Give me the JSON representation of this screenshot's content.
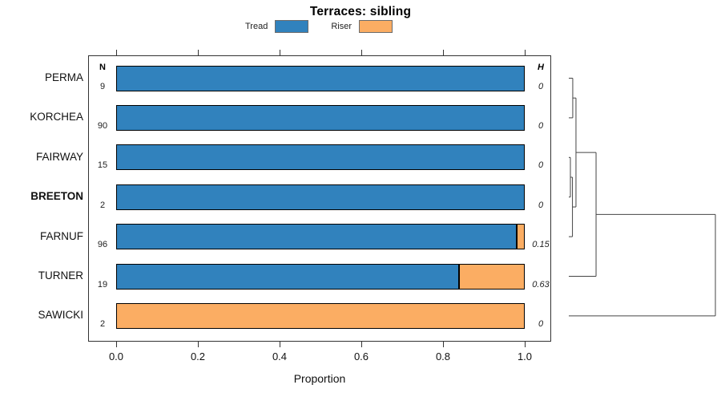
{
  "title": "Terraces: sibling",
  "legend": {
    "items": [
      {
        "label": "Tread",
        "color": "#3182BD"
      },
      {
        "label": "Riser",
        "color": "#FBAD63"
      }
    ]
  },
  "columns": {
    "n_header": "N",
    "h_header": "H"
  },
  "xlabel": "Proportion",
  "colors": {
    "tread": "#3182BD",
    "riser": "#FBAD63",
    "bar_border": "#000000",
    "frame": "#333333",
    "dendrogram": "#444444"
  },
  "chart_data": {
    "type": "bar",
    "orientation": "horizontal_stacked",
    "title": "Terraces: sibling",
    "xlabel": "Proportion",
    "xlim": [
      0,
      1
    ],
    "grid": false,
    "legend_position": "top",
    "xticks": [
      {
        "value": 0.0,
        "label": "0.0"
      },
      {
        "value": 0.2,
        "label": "0.2"
      },
      {
        "value": 0.4,
        "label": "0.4"
      },
      {
        "value": 0.6,
        "label": "0.6"
      },
      {
        "value": 0.8,
        "label": "0.8"
      },
      {
        "value": 1.0,
        "label": "1.0"
      }
    ],
    "categories": [
      "PERMA",
      "KORCHEA",
      "FAIRWAY",
      "BREETON",
      "FARNUF",
      "TURNER",
      "SAWICKI"
    ],
    "bold_category": "BREETON",
    "series": [
      {
        "name": "Tread",
        "color": "#3182BD",
        "values": [
          1.0,
          1.0,
          1.0,
          1.0,
          0.98,
          0.84,
          0.0
        ]
      },
      {
        "name": "Riser",
        "color": "#FBAD63",
        "values": [
          0.0,
          0.0,
          0.0,
          0.0,
          0.02,
          0.16,
          1.0
        ]
      }
    ],
    "N": [
      "9",
      "90",
      "15",
      "2",
      "96",
      "19",
      "2"
    ],
    "H": [
      "0",
      "0",
      "0",
      "0",
      "0.15",
      "0.63",
      "0"
    ],
    "dendrogram": {
      "side": "right",
      "leaf_order": [
        "PERMA",
        "KORCHEA",
        "FAIRWAY",
        "BREETON",
        "FARNUF",
        "TURNER",
        "SAWICKI"
      ],
      "merges": [
        {
          "id": "n1",
          "children": [
            "PERMA",
            "KORCHEA"
          ],
          "height": 0.027
        },
        {
          "id": "n2",
          "children": [
            "FAIRWAY",
            "BREETON"
          ],
          "height": 0.011
        },
        {
          "id": "n3",
          "children": [
            "n2",
            "FARNUF"
          ],
          "height": 0.025
        },
        {
          "id": "n4",
          "children": [
            "n1",
            "n3"
          ],
          "height": 0.049
        },
        {
          "id": "n5",
          "children": [
            "n4",
            "TURNER"
          ],
          "height": 0.186
        },
        {
          "id": "n6",
          "children": [
            "n5",
            "SAWICKI"
          ],
          "height": 1.0
        }
      ]
    }
  }
}
